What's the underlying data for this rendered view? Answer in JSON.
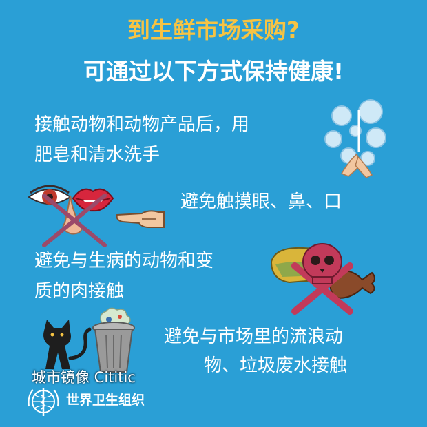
{
  "title": {
    "line1": "到生鲜市场采购?",
    "line2": "可通过以下方式保持健康!"
  },
  "tips": [
    {
      "line1": "接触动物和动物产品后，用",
      "line2": "肥皂和清水洗手"
    },
    {
      "line1": "避免触摸眼、鼻、口"
    },
    {
      "line1": "避免与生病的动物和变",
      "line2": "质的肉接触"
    },
    {
      "line1": "避免与市场里的流浪动",
      "line2": "物、垃圾废水接触"
    }
  ],
  "watermark": "城市镜像 Cititic",
  "organization": "世界卫生组织",
  "colors": {
    "background": "#2a9fd6",
    "title_accent": "#f6c343",
    "text": "#ffffff",
    "cross": "#9b4a6a"
  },
  "icons": [
    "hand-washing-icon",
    "eye-icon",
    "lips-icon",
    "nose-icon",
    "pointing-hand-icon",
    "spoiled-meat-skull-icon",
    "black-cat-icon",
    "trash-can-icon",
    "who-emblem-icon"
  ]
}
